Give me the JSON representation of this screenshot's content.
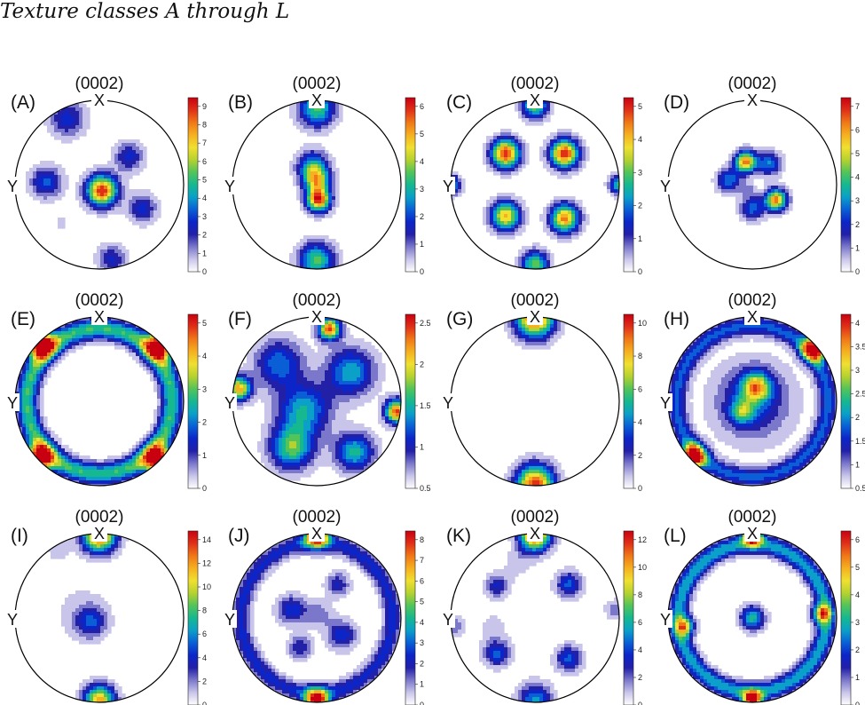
{
  "title": "Texture classes A through L",
  "axes": {
    "x": "X",
    "y": "Y"
  },
  "colormap": [
    "#ffffff",
    "#c9c5ea",
    "#7b78cc",
    "#2320a8",
    "#0b25c8",
    "#0a5fd6",
    "#0aa0c8",
    "#16b890",
    "#52c45a",
    "#b6d230",
    "#f0e030",
    "#f6b020",
    "#f07818",
    "#e03018",
    "#c80010"
  ],
  "panels": [
    {
      "label": "(A)",
      "plane": "(0002)",
      "ticks": [
        "0",
        "1",
        "2",
        "3",
        "4",
        "5",
        "6",
        "7",
        "8",
        "9"
      ],
      "vmax": 9.5,
      "blobs": [
        [
          0.03,
          -0.07,
          0.13,
          9.3
        ],
        [
          -0.63,
          0.03,
          0.13,
          3.6
        ],
        [
          0.35,
          0.33,
          0.12,
          3.0
        ],
        [
          0.51,
          -0.28,
          0.12,
          3.0
        ],
        [
          -0.45,
          -0.46,
          0.05,
          1.2
        ],
        [
          -0.38,
          0.78,
          0.15,
          3.0
        ],
        [
          0.15,
          -0.88,
          0.12,
          2.8
        ]
      ]
    },
    {
      "label": "(B)",
      "plane": "(0002)",
      "ticks": [
        "0",
        "1",
        "2",
        "3",
        "4",
        "5",
        "6"
      ],
      "vmax": 6.8,
      "blobs": [
        [
          0.0,
          0.05,
          0.11,
          4.2
        ],
        [
          0.02,
          -0.18,
          0.1,
          6.5
        ],
        [
          -0.05,
          0.22,
          0.13,
          3.2
        ],
        [
          0.0,
          0.9,
          0.15,
          4.0
        ],
        [
          0.0,
          -0.9,
          0.15,
          4.0
        ]
      ]
    },
    {
      "label": "(C)",
      "plane": "(0002)",
      "ticks": [
        "0",
        "1",
        "2",
        "3",
        "4",
        "5"
      ],
      "vmax": 5.3,
      "blobs": [
        [
          -0.35,
          0.37,
          0.12,
          5.2
        ],
        [
          0.35,
          0.37,
          0.12,
          5.2
        ],
        [
          -0.35,
          -0.37,
          0.12,
          4.3
        ],
        [
          0.35,
          -0.4,
          0.12,
          4.6
        ],
        [
          -1.0,
          0.0,
          0.08,
          3.0
        ],
        [
          1.0,
          0.0,
          0.08,
          3.0
        ],
        [
          0.0,
          0.94,
          0.11,
          3.3
        ],
        [
          0.0,
          -0.94,
          0.11,
          3.3
        ]
      ]
    },
    {
      "label": "(D)",
      "plane": "(0002)",
      "ticks": [
        "0",
        "1",
        "2",
        "3",
        "4",
        "5",
        "6",
        "7"
      ],
      "vmax": 7.2,
      "blobs": [
        [
          -0.08,
          0.27,
          0.09,
          6.3
        ],
        [
          0.28,
          -0.18,
          0.09,
          6.3
        ],
        [
          -0.28,
          0.05,
          0.1,
          3.0
        ],
        [
          0.2,
          0.25,
          0.1,
          3.0
        ],
        [
          0.0,
          -0.28,
          0.1,
          2.8
        ],
        [
          -0.05,
          -0.05,
          0.06,
          1.0
        ]
      ]
    },
    {
      "label": "(E)",
      "plane": "(0002)",
      "ticks": [
        "0",
        "1",
        "2",
        "3",
        "4",
        "5"
      ],
      "ring": [
        0.86,
        0.09,
        3.2
      ],
      "vmax": 5.7,
      "blobs": [
        [
          -0.7,
          0.68,
          0.12,
          5.4
        ],
        [
          0.72,
          0.66,
          0.12,
          5.4
        ],
        [
          -0.72,
          -0.68,
          0.12,
          5.4
        ],
        [
          0.7,
          -0.7,
          0.12,
          5.4
        ]
      ]
    },
    {
      "label": "(F)",
      "plane": "(0002)",
      "ticks": [
        "0.5",
        "1",
        "1.5",
        "2",
        "2.5"
      ],
      "vmax": 2.7,
      "blobs": [
        [
          0.15,
          0.86,
          0.09,
          2.6
        ],
        [
          -0.92,
          0.15,
          0.1,
          2.2
        ],
        [
          0.95,
          -0.12,
          0.1,
          2.5
        ],
        [
          -0.3,
          -0.55,
          0.18,
          1.6
        ],
        [
          0.45,
          -0.6,
          0.16,
          1.4
        ],
        [
          0.4,
          0.35,
          0.2,
          1.3
        ],
        [
          -0.45,
          0.45,
          0.2,
          1.1
        ],
        [
          -0.15,
          -0.1,
          0.22,
          1.3
        ]
      ]
    },
    {
      "label": "(G)",
      "plane": "(0002)",
      "ticks": [
        "0",
        "2",
        "4",
        "6",
        "8",
        "10"
      ],
      "vmax": 10.5,
      "blobs": [
        [
          0.0,
          0.98,
          0.16,
          10.0
        ],
        [
          0.0,
          -0.98,
          0.16,
          10.0
        ]
      ]
    },
    {
      "label": "(H)",
      "plane": "(0002)",
      "ticks": [
        "0.5",
        "1",
        "1.5",
        "2",
        "2.5",
        "3",
        "3.5",
        "4"
      ],
      "ring": [
        0.9,
        0.08,
        1.6
      ],
      "vmax": 4.4,
      "blobs": [
        [
          0.0,
          0.0,
          0.32,
          1.5
        ],
        [
          0.05,
          0.17,
          0.12,
          2.8
        ],
        [
          -0.12,
          -0.12,
          0.1,
          1.8
        ],
        [
          0.73,
          0.62,
          0.1,
          4.3
        ],
        [
          -0.7,
          -0.65,
          0.1,
          4.3
        ]
      ]
    },
    {
      "label": "(I)",
      "plane": "(0002)",
      "ticks": [
        "0",
        "2",
        "4",
        "6",
        "8",
        "10",
        "12",
        "14"
      ],
      "vmax": 14.5,
      "blobs": [
        [
          0.0,
          0.98,
          0.14,
          14.0
        ],
        [
          0.0,
          -0.98,
          0.13,
          12.0
        ],
        [
          -0.1,
          -0.05,
          0.12,
          4.5
        ],
        [
          -0.2,
          0.05,
          0.25,
          1.5
        ],
        [
          -0.5,
          0.8,
          0.13,
          1.2
        ],
        [
          0.5,
          0.45,
          0.06,
          0.9
        ],
        [
          0.8,
          -0.6,
          0.05,
          0.8
        ]
      ]
    },
    {
      "label": "(J)",
      "plane": "(0002)",
      "ticks": [
        "0",
        "1",
        "2",
        "3",
        "4",
        "5",
        "6",
        "7",
        "8"
      ],
      "ring": [
        0.9,
        0.08,
        2.5
      ],
      "vmax": 8.3,
      "blobs": [
        [
          0.0,
          0.98,
          0.1,
          8.0
        ],
        [
          0.0,
          -0.98,
          0.1,
          8.0
        ],
        [
          -0.3,
          0.1,
          0.12,
          2.8
        ],
        [
          0.25,
          0.4,
          0.1,
          2.3
        ],
        [
          0.3,
          -0.2,
          0.12,
          2.8
        ],
        [
          -0.2,
          -0.35,
          0.1,
          2.3
        ],
        [
          0.02,
          0.05,
          0.12,
          1.5
        ]
      ]
    },
    {
      "label": "(K)",
      "plane": "(0002)",
      "ticks": [
        "0",
        "2",
        "4",
        "6",
        "8",
        "10",
        "12"
      ],
      "vmax": 12.3,
      "blobs": [
        [
          0.0,
          0.98,
          0.13,
          12.0
        ],
        [
          0.0,
          -0.98,
          0.14,
          5.5
        ],
        [
          0.4,
          0.4,
          0.11,
          4.5
        ],
        [
          -0.45,
          0.38,
          0.1,
          3.5
        ],
        [
          0.4,
          -0.48,
          0.11,
          4.5
        ],
        [
          -0.45,
          -0.42,
          0.11,
          4.5
        ],
        [
          0.95,
          0.1,
          0.08,
          2.5
        ],
        [
          -0.95,
          -0.1,
          0.08,
          2.5
        ],
        [
          -0.2,
          0.65,
          0.12,
          1.3
        ],
        [
          -0.5,
          -0.1,
          0.15,
          1.0
        ]
      ]
    },
    {
      "label": "(L)",
      "plane": "(0002)",
      "ticks": [
        "0",
        "1",
        "2",
        "3",
        "4",
        "5",
        "6"
      ],
      "ring": [
        0.88,
        0.08,
        3.2
      ],
      "vmax": 6.7,
      "blobs": [
        [
          0.0,
          0.0,
          0.1,
          3.5
        ],
        [
          0.0,
          0.98,
          0.08,
          6.5
        ],
        [
          0.0,
          -0.98,
          0.08,
          6.5
        ],
        [
          0.82,
          0.05,
          0.08,
          4.0
        ],
        [
          -0.8,
          -0.1,
          0.08,
          4.0
        ]
      ]
    }
  ]
}
